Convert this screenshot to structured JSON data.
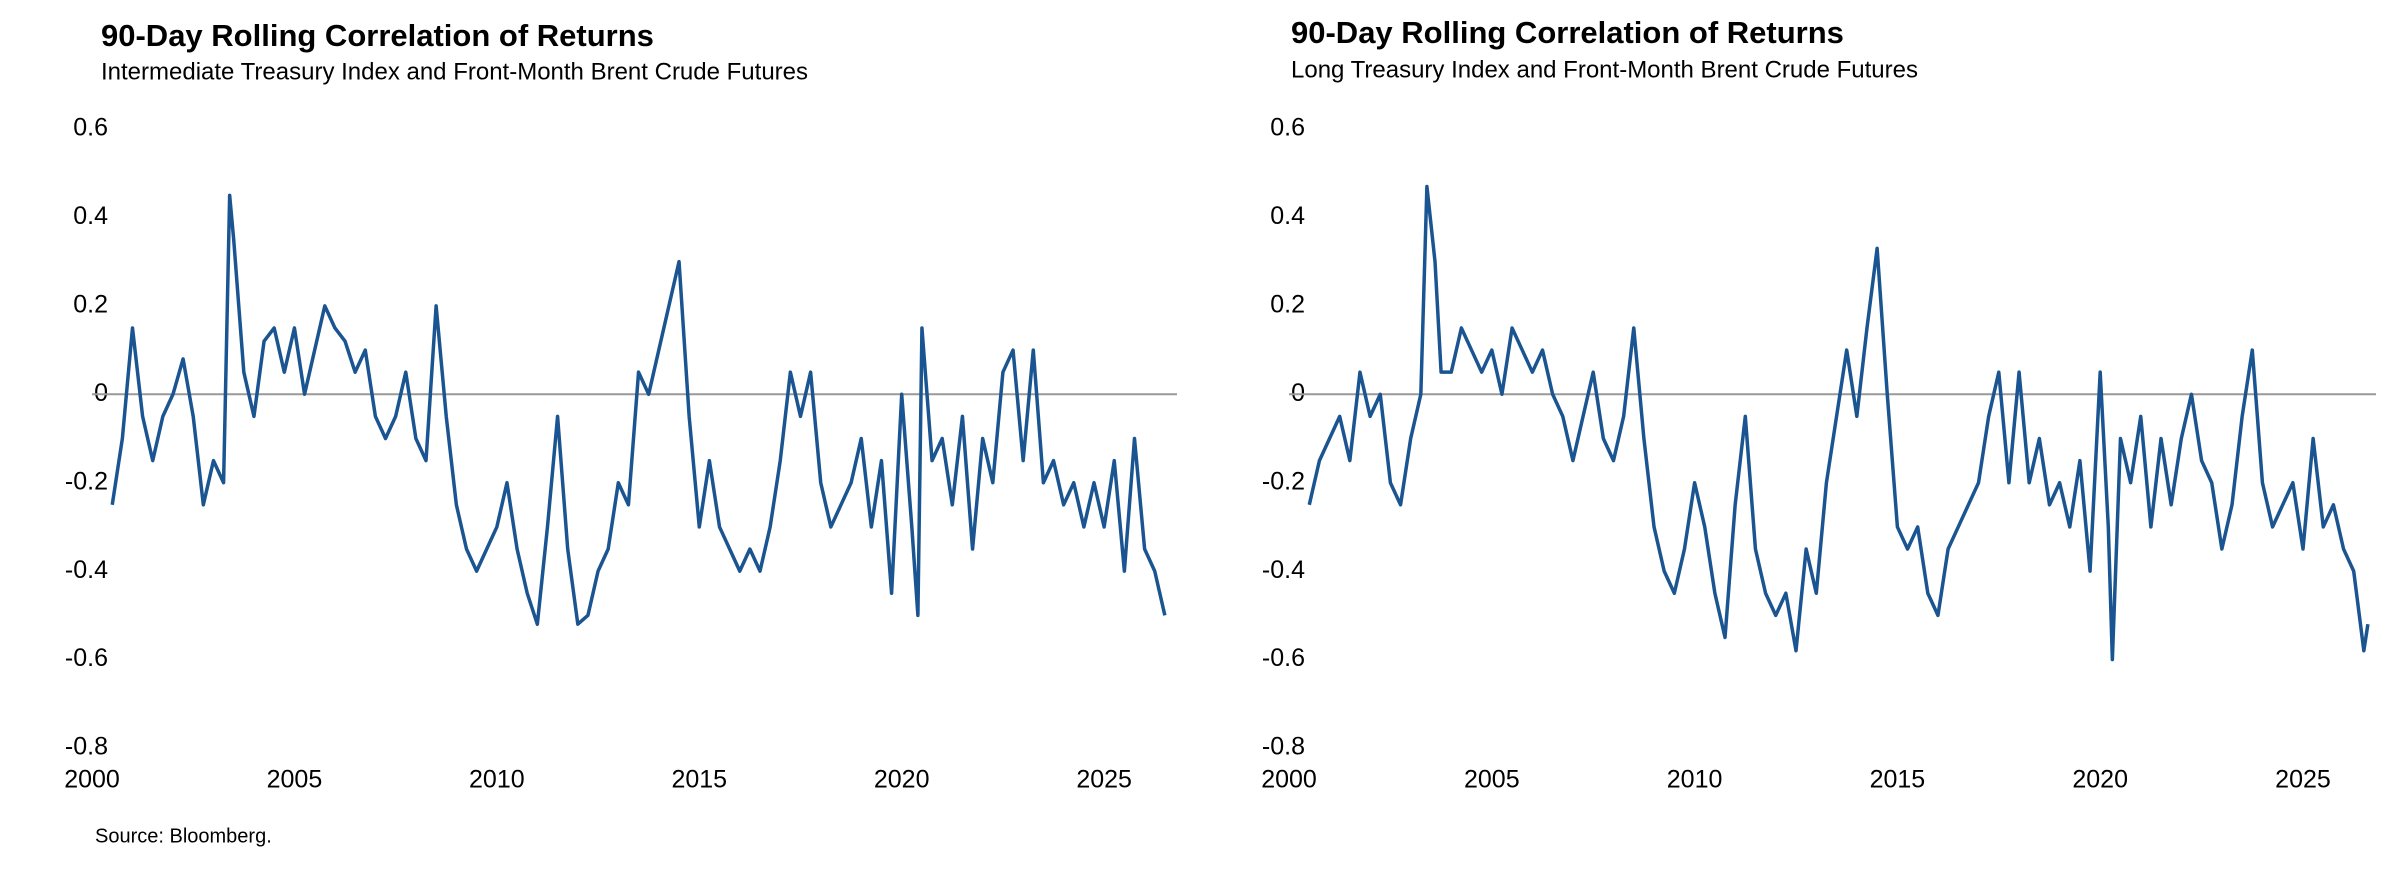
{
  "chart_data": [
    {
      "type": "line",
      "title": "90-Day Rolling Correlation of Returns",
      "subtitle": "Intermediate Treasury Index and Front-Month Brent Crude Futures",
      "x": [
        2000.5,
        2000.75,
        2001,
        2001.25,
        2001.5,
        2001.75,
        2002,
        2002.25,
        2002.5,
        2002.75,
        2003,
        2003.25,
        2003.4,
        2003.5,
        2003.75,
        2004,
        2004.25,
        2004.5,
        2004.75,
        2005,
        2005.25,
        2005.5,
        2005.75,
        2006,
        2006.25,
        2006.5,
        2006.75,
        2007,
        2007.25,
        2007.5,
        2007.75,
        2008,
        2008.25,
        2008.5,
        2008.75,
        2009,
        2009.25,
        2009.5,
        2009.75,
        2010,
        2010.25,
        2010.5,
        2010.75,
        2011,
        2011.25,
        2011.5,
        2011.75,
        2012,
        2012.25,
        2012.5,
        2012.75,
        2013,
        2013.25,
        2013.5,
        2013.75,
        2014,
        2014.25,
        2014.5,
        2014.75,
        2015,
        2015.25,
        2015.5,
        2015.75,
        2016,
        2016.25,
        2016.5,
        2016.75,
        2017,
        2017.25,
        2017.5,
        2017.75,
        2018,
        2018.25,
        2018.5,
        2018.75,
        2019,
        2019.25,
        2019.5,
        2019.75,
        2020,
        2020.25,
        2020.4,
        2020.5,
        2020.75,
        2021,
        2021.25,
        2021.5,
        2021.75,
        2022,
        2022.25,
        2022.5,
        2022.75,
        2023,
        2023.25,
        2023.5,
        2023.75,
        2024,
        2024.25,
        2024.5,
        2024.75,
        2025,
        2025.25,
        2025.5,
        2025.75,
        2026,
        2026.25,
        2026.5
      ],
      "series": [
        {
          "color": "#1b5591",
          "values": [
            -0.25,
            -0.1,
            0.15,
            -0.05,
            -0.15,
            -0.05,
            0.0,
            0.08,
            -0.05,
            -0.25,
            -0.15,
            -0.2,
            0.45,
            0.35,
            0.05,
            -0.05,
            0.12,
            0.15,
            0.05,
            0.15,
            0.0,
            0.1,
            0.2,
            0.15,
            0.12,
            0.05,
            0.1,
            -0.05,
            -0.1,
            -0.05,
            0.05,
            -0.1,
            -0.15,
            0.2,
            -0.05,
            -0.25,
            -0.35,
            -0.4,
            -0.35,
            -0.3,
            -0.2,
            -0.35,
            -0.45,
            -0.52,
            -0.3,
            -0.05,
            -0.35,
            -0.52,
            -0.5,
            -0.4,
            -0.35,
            -0.2,
            -0.25,
            0.05,
            0.0,
            0.1,
            0.2,
            0.3,
            -0.05,
            -0.3,
            -0.15,
            -0.3,
            -0.35,
            -0.4,
            -0.35,
            -0.4,
            -0.3,
            -0.15,
            0.05,
            -0.05,
            0.05,
            -0.2,
            -0.3,
            -0.25,
            -0.2,
            -0.1,
            -0.3,
            -0.15,
            -0.45,
            0.0,
            -0.3,
            -0.5,
            0.15,
            -0.15,
            -0.1,
            -0.25,
            -0.05,
            -0.35,
            -0.1,
            -0.2,
            0.05,
            0.1,
            -0.15,
            0.1,
            -0.2,
            -0.15,
            -0.25,
            -0.2,
            -0.3,
            -0.2,
            -0.3,
            -0.15,
            -0.4,
            -0.1,
            -0.35,
            -0.4,
            -0.5
          ]
        }
      ],
      "xlim": [
        2000,
        2026.8
      ],
      "ylim": [
        -0.8,
        0.6
      ],
      "xticks": [
        2000,
        2005,
        2010,
        2015,
        2020,
        2025
      ],
      "yticks": [
        0.6,
        0.4,
        0.2,
        0,
        -0.2,
        -0.4,
        -0.6,
        -0.8
      ],
      "zero_line": true
    },
    {
      "type": "line",
      "title": "90-Day Rolling Correlation of Returns",
      "subtitle": "Long Treasury Index and Front-Month Brent Crude Futures",
      "x": [
        2000.5,
        2000.75,
        2001,
        2001.25,
        2001.5,
        2001.75,
        2002,
        2002.25,
        2002.5,
        2002.75,
        2003,
        2003.25,
        2003.4,
        2003.6,
        2003.75,
        2004,
        2004.25,
        2004.5,
        2004.75,
        2005,
        2005.25,
        2005.5,
        2005.75,
        2006,
        2006.25,
        2006.5,
        2006.75,
        2007,
        2007.25,
        2007.5,
        2007.75,
        2008,
        2008.25,
        2008.5,
        2008.75,
        2009,
        2009.25,
        2009.5,
        2009.75,
        2010,
        2010.25,
        2010.5,
        2010.75,
        2011,
        2011.25,
        2011.5,
        2011.75,
        2012,
        2012.25,
        2012.5,
        2012.75,
        2013,
        2013.25,
        2013.5,
        2013.75,
        2014,
        2014.25,
        2014.5,
        2014.75,
        2015,
        2015.25,
        2015.5,
        2015.75,
        2016,
        2016.25,
        2016.5,
        2016.75,
        2017,
        2017.25,
        2017.5,
        2017.75,
        2018,
        2018.25,
        2018.5,
        2018.75,
        2019,
        2019.25,
        2019.5,
        2019.75,
        2020,
        2020.2,
        2020.3,
        2020.5,
        2020.75,
        2021,
        2021.25,
        2021.5,
        2021.75,
        2022,
        2022.25,
        2022.5,
        2022.75,
        2023,
        2023.25,
        2023.5,
        2023.75,
        2024,
        2024.25,
        2024.5,
        2024.75,
        2025,
        2025.25,
        2025.5,
        2025.75,
        2026,
        2026.25,
        2026.5,
        2026.6
      ],
      "series": [
        {
          "color": "#1b5591",
          "values": [
            -0.25,
            -0.15,
            -0.1,
            -0.05,
            -0.15,
            0.05,
            -0.05,
            0.0,
            -0.2,
            -0.25,
            -0.1,
            0.0,
            0.47,
            0.3,
            0.05,
            0.05,
            0.15,
            0.1,
            0.05,
            0.1,
            0.0,
            0.15,
            0.1,
            0.05,
            0.1,
            0.0,
            -0.05,
            -0.15,
            -0.05,
            0.05,
            -0.1,
            -0.15,
            -0.05,
            0.15,
            -0.1,
            -0.3,
            -0.4,
            -0.45,
            -0.35,
            -0.2,
            -0.3,
            -0.45,
            -0.55,
            -0.25,
            -0.05,
            -0.35,
            -0.45,
            -0.5,
            -0.45,
            -0.58,
            -0.35,
            -0.45,
            -0.2,
            -0.05,
            0.1,
            -0.05,
            0.15,
            0.33,
            0.0,
            -0.3,
            -0.35,
            -0.3,
            -0.45,
            -0.5,
            -0.35,
            -0.3,
            -0.25,
            -0.2,
            -0.05,
            0.05,
            -0.2,
            0.05,
            -0.2,
            -0.1,
            -0.25,
            -0.2,
            -0.3,
            -0.15,
            -0.4,
            0.05,
            -0.3,
            -0.6,
            -0.1,
            -0.2,
            -0.05,
            -0.3,
            -0.1,
            -0.25,
            -0.1,
            0.0,
            -0.15,
            -0.2,
            -0.35,
            -0.25,
            -0.05,
            0.1,
            -0.2,
            -0.3,
            -0.25,
            -0.2,
            -0.35,
            -0.1,
            -0.3,
            -0.25,
            -0.35,
            -0.4,
            -0.58,
            -0.52
          ]
        }
      ],
      "xlim": [
        2000,
        2026.8
      ],
      "ylim": [
        -0.8,
        0.6
      ],
      "xticks": [
        2000,
        2005,
        2010,
        2015,
        2020,
        2025
      ],
      "yticks": [
        0.6,
        0.4,
        0.2,
        0,
        -0.2,
        -0.4,
        -0.6,
        -0.8
      ],
      "zero_line": true
    }
  ],
  "source": "Source: Bloomberg."
}
